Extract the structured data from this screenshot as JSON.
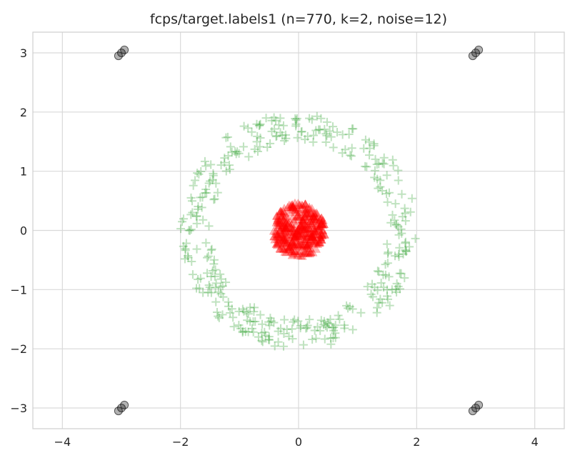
{
  "chart_data": {
    "type": "scatter",
    "title": "fcps/target.labels1 (n=770, k=2, noise=12)",
    "xlabel": "",
    "ylabel": "",
    "xlim": [
      -4.5,
      4.5
    ],
    "ylim": [
      -3.35,
      3.35
    ],
    "xticks": [
      -4,
      -2,
      0,
      2,
      4
    ],
    "yticks": [
      -3,
      -2,
      -1,
      0,
      1,
      2,
      3
    ],
    "xtick_labels": [
      "−4",
      "−2",
      "0",
      "2",
      "4"
    ],
    "ytick_labels": [
      "−3",
      "−2",
      "−1",
      "0",
      "1",
      "2",
      "3"
    ],
    "grid": true,
    "legend": "none",
    "series": [
      {
        "marker": "+",
        "color": "#2ca02c",
        "alpha": 0.3,
        "ring": {
          "center": [
            0,
            0
          ],
          "r_min": 1.5,
          "r_max": 2.0
        },
        "count": 363
      },
      {
        "marker": "triangle",
        "color": "#ff0000",
        "alpha": 0.3,
        "disc": {
          "center": [
            0,
            0
          ],
          "radius": 0.5
        },
        "count": 395
      },
      {
        "marker": "circle",
        "color": "#000000",
        "alpha": 0.3,
        "points": [
          [
            -3.05,
            2.95
          ],
          [
            -3.0,
            3.0
          ],
          [
            -2.95,
            3.05
          ],
          [
            2.95,
            2.95
          ],
          [
            3.0,
            3.0
          ],
          [
            3.05,
            3.05
          ],
          [
            -3.05,
            -3.05
          ],
          [
            -3.0,
            -3.0
          ],
          [
            -2.95,
            -2.95
          ],
          [
            2.95,
            -3.05
          ],
          [
            3.0,
            -3.0
          ],
          [
            3.05,
            -2.95
          ]
        ]
      }
    ]
  }
}
